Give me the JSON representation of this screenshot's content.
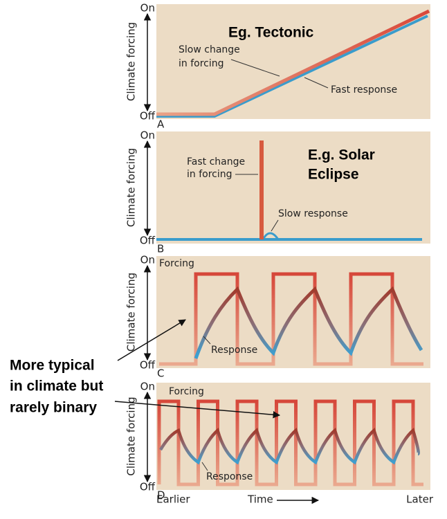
{
  "panels": [
    {
      "letter": "A",
      "axis_label": "Climate forcing",
      "on": "On",
      "off": "Off",
      "heading": [
        "Eg. Tectonic"
      ],
      "forcing_label": [
        "Slow change",
        "in forcing"
      ],
      "response_label": "Fast response"
    },
    {
      "letter": "B",
      "axis_label": "Climate forcing",
      "on": "On",
      "off": "Off",
      "heading": [
        "E.g. Solar",
        "Eclipse"
      ],
      "forcing_label": [
        "Fast change",
        "in forcing"
      ],
      "response_label": "Slow response"
    },
    {
      "letter": "C",
      "axis_label": "Climate forcing",
      "on": "On",
      "off": "Off",
      "forcing_label": [
        "Forcing"
      ],
      "response_label": "Response"
    },
    {
      "letter": "D",
      "axis_label": "Climate forcing",
      "on": "On",
      "off": "Off",
      "forcing_label": [
        "Forcing"
      ],
      "response_label": "Response"
    }
  ],
  "annotation": [
    "More typical",
    "in climate but",
    "rarely binary"
  ],
  "time_axis": {
    "start": "Earlier",
    "label": "Time",
    "end": "Later"
  }
}
